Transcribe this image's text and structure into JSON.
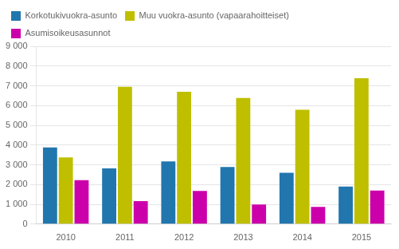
{
  "chart_data": {
    "type": "bar",
    "categories": [
      "2010",
      "2011",
      "2012",
      "2013",
      "2014",
      "2015"
    ],
    "series": [
      {
        "name": "Korkotukivuokra-asunto",
        "color": "#2176AE",
        "values": [
          3880,
          2820,
          3170,
          2890,
          2600,
          1900
        ]
      },
      {
        "name": "Muu vuokra-asunto (vapaarahoitteiset)",
        "color": "#BFBF00",
        "values": [
          3380,
          6950,
          6700,
          6380,
          5790,
          7380
        ]
      },
      {
        "name": "Asumisoikeusasunnot",
        "color": "#CC00AA",
        "values": [
          2220,
          1160,
          1680,
          990,
          870,
          1700
        ]
      }
    ],
    "ylim": [
      0,
      9000
    ],
    "yticks": [
      0,
      {
        "value": 1000,
        "label": "1 000"
      },
      {
        "value": 2000,
        "label": "2 000"
      },
      {
        "value": 3000,
        "label": "3 000"
      },
      {
        "value": 4000,
        "label": "4 000"
      },
      {
        "value": 5000,
        "label": "5 000"
      },
      {
        "value": 6000,
        "label": "6 000"
      },
      {
        "value": 7000,
        "label": "7 000"
      },
      {
        "value": 8000,
        "label": "8 000"
      },
      {
        "value": 9000,
        "label": "9 000"
      }
    ],
    "grid": true,
    "legend": "upper left"
  }
}
